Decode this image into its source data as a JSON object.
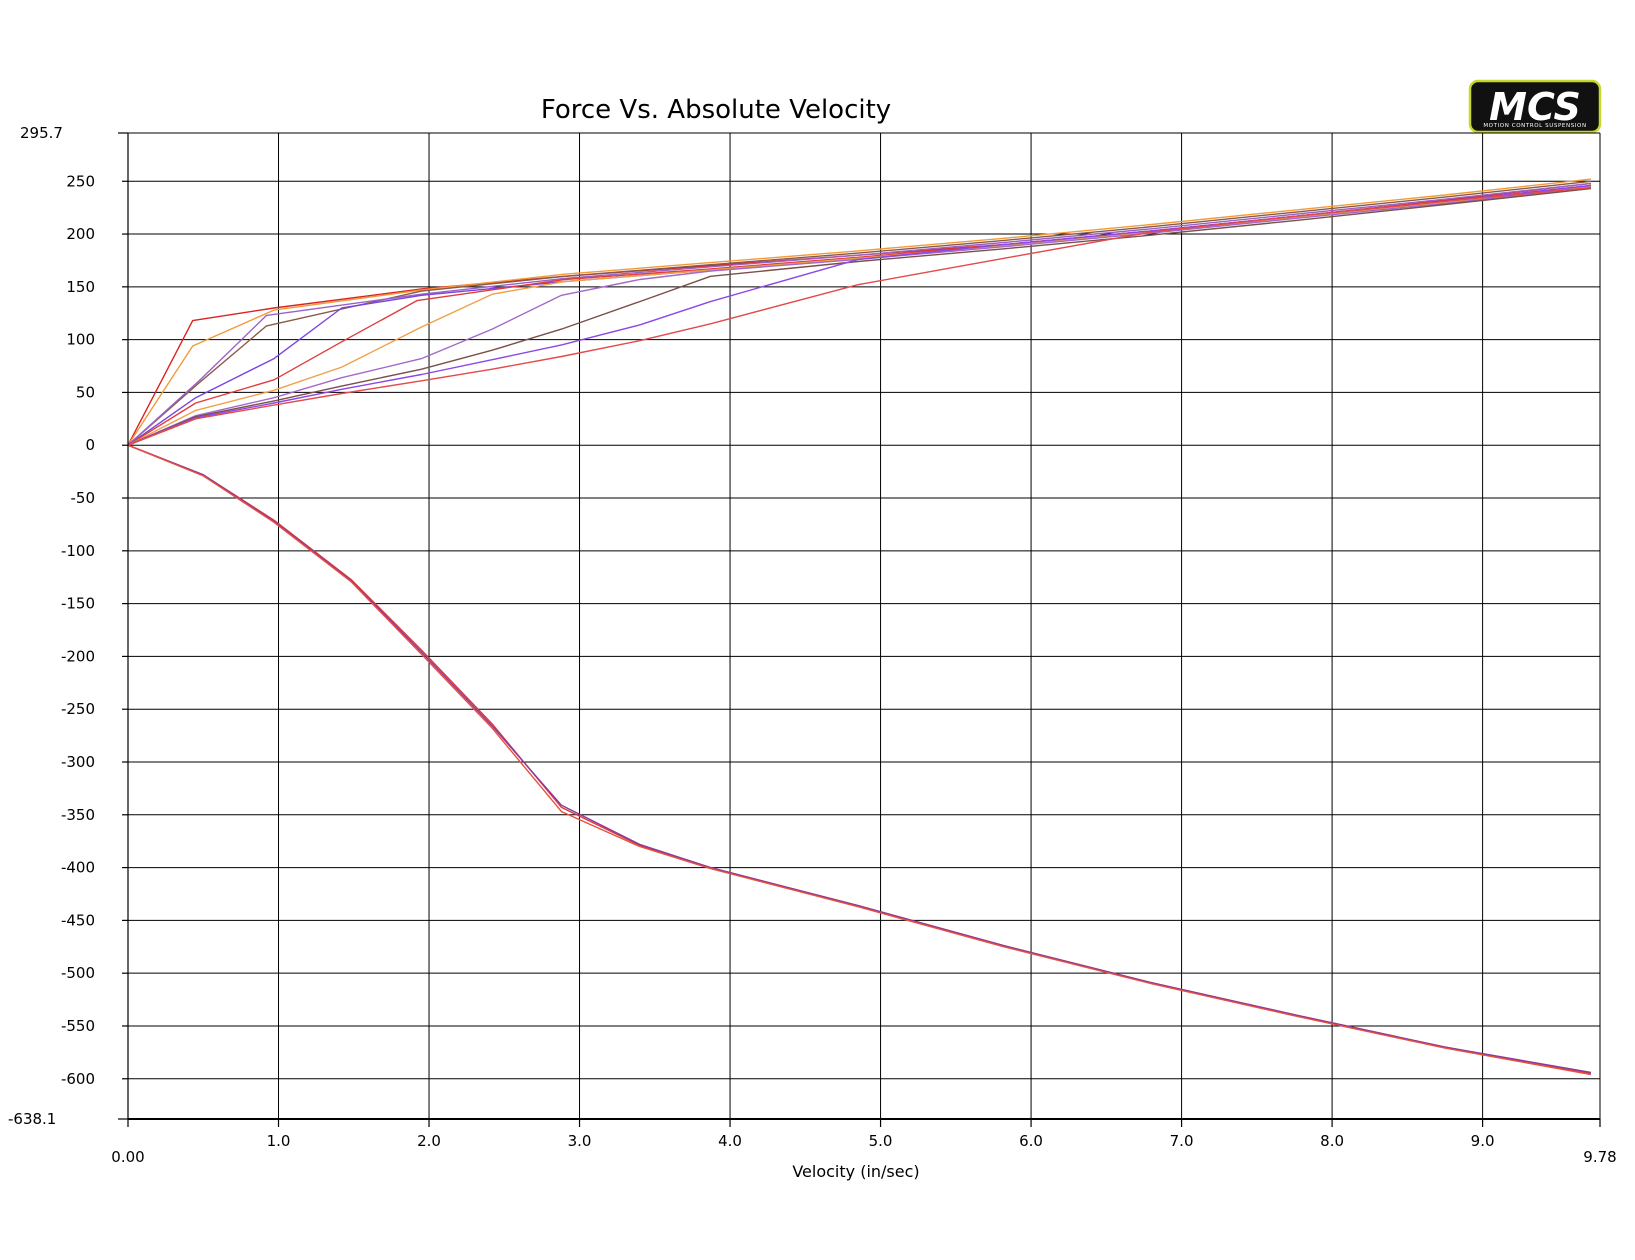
{
  "chart_data": {
    "type": "line",
    "title": "Force Vs. Absolute Velocity",
    "xlabel": "Velocity (in/sec)",
    "ylabel": "",
    "xlim": [
      0,
      9.78
    ],
    "ylim": [
      -638.1,
      295.7
    ],
    "x_ticks": [
      "0.00",
      "1.0",
      "2.0",
      "3.0",
      "4.0",
      "5.0",
      "6.0",
      "7.0",
      "8.0",
      "9.0",
      "9.78"
    ],
    "y_ticks": [
      "295.7",
      "250",
      "200",
      "150",
      "100",
      "50",
      "0",
      "-50",
      "-100",
      "-150",
      "-200",
      "-250",
      "-300",
      "-350",
      "-400",
      "-450",
      "-500",
      "-550",
      "-600",
      "-638.1"
    ],
    "grid": true,
    "legend": "none",
    "series": [
      {
        "color": "#dd2222",
        "x": [
          0,
          0.43,
          0.97,
          1.95,
          2.9,
          3.87,
          4.85,
          5.82,
          6.8,
          7.77,
          8.75,
          9.72
        ],
        "y": [
          0,
          118,
          130,
          148,
          160,
          170,
          180,
          190,
          203,
          217,
          232,
          248
        ]
      },
      {
        "color": "#f29a3a",
        "x": [
          0,
          0.43,
          0.97,
          1.95,
          2.9,
          3.87,
          4.85,
          5.82,
          6.8,
          7.77,
          8.75,
          9.72
        ],
        "y": [
          0,
          94,
          128,
          147,
          162,
          173,
          184,
          196,
          209,
          223,
          237,
          252
        ]
      },
      {
        "color": "#8a5a46",
        "x": [
          0,
          0.48,
          0.92,
          1.95,
          2.9,
          3.87,
          4.85,
          5.82,
          6.8,
          7.77,
          8.75,
          9.72
        ],
        "y": [
          0,
          60,
          113,
          146,
          160,
          171,
          182,
          194,
          207,
          221,
          235,
          250
        ]
      },
      {
        "color": "#9a62c8",
        "x": [
          0,
          0.48,
          0.92,
          1.95,
          2.9,
          3.87,
          4.85,
          5.82,
          6.8,
          7.77,
          8.75,
          9.72
        ],
        "y": [
          0,
          62,
          123,
          143,
          158,
          169,
          180,
          192,
          205,
          219,
          233,
          248
        ]
      },
      {
        "color": "#7a44e0",
        "x": [
          0,
          0.45,
          0.97,
          1.42,
          1.95,
          2.9,
          3.87,
          4.85,
          5.82,
          6.8,
          7.77,
          8.75,
          9.72
        ],
        "y": [
          0,
          45,
          82,
          130,
          142,
          155,
          166,
          177,
          189,
          202,
          216,
          230,
          245
        ]
      },
      {
        "color": "#e03c3c",
        "x": [
          0,
          0.45,
          0.97,
          1.42,
          1.92,
          2.9,
          3.87,
          4.85,
          5.82,
          6.8,
          7.77,
          8.75,
          9.72
        ],
        "y": [
          0,
          40,
          62,
          98,
          137,
          157,
          167,
          178,
          190,
          203,
          217,
          231,
          246
        ]
      },
      {
        "color": "#f0a048",
        "x": [
          0,
          0.45,
          0.97,
          1.42,
          1.95,
          2.42,
          2.9,
          3.87,
          4.85,
          5.82,
          6.8,
          7.77,
          8.75,
          9.72
        ],
        "y": [
          0,
          33,
          52,
          74,
          112,
          143,
          155,
          166,
          177,
          189,
          202,
          216,
          230,
          245
        ]
      },
      {
        "color": "#a468c8",
        "x": [
          0,
          0.45,
          0.97,
          1.42,
          1.95,
          2.42,
          2.88,
          3.4,
          3.87,
          4.85,
          5.82,
          6.8,
          7.77,
          8.75,
          9.72
        ],
        "y": [
          0,
          28,
          45,
          64,
          82,
          110,
          142,
          157,
          165,
          176,
          188,
          201,
          215,
          229,
          244
        ]
      },
      {
        "color": "#7a5048",
        "x": [
          0,
          0.45,
          0.97,
          1.42,
          1.95,
          2.42,
          2.88,
          3.4,
          3.87,
          4.85,
          5.82,
          6.8,
          7.77,
          8.75,
          9.72
        ],
        "y": [
          0,
          27,
          42,
          56,
          72,
          90,
          110,
          136,
          160,
          174,
          186,
          199,
          213,
          228,
          243
        ]
      },
      {
        "color": "#8a48e8",
        "x": [
          0,
          0.45,
          0.97,
          1.42,
          1.95,
          2.42,
          2.88,
          3.4,
          3.87,
          4.85,
          5.82,
          6.8,
          7.77,
          8.75,
          9.72
        ],
        "y": [
          0,
          26,
          40,
          53,
          67,
          81,
          95,
          114,
          136,
          176,
          190,
          203,
          217,
          231,
          246
        ]
      },
      {
        "color": "#e44a4a",
        "x": [
          0,
          0.45,
          0.97,
          1.42,
          1.95,
          2.42,
          2.88,
          3.4,
          3.87,
          4.85,
          5.82,
          6.8,
          7.77,
          8.75,
          9.72
        ],
        "y": [
          0,
          25,
          38,
          49,
          61,
          72,
          84,
          99,
          115,
          152,
          177,
          202,
          217,
          231,
          244
        ]
      },
      {
        "color": "#d93a3a",
        "x": [
          0,
          0.5,
          0.97,
          1.48,
          1.95,
          2.42,
          2.88,
          3.4,
          3.87,
          4.85,
          5.82,
          6.8,
          7.77,
          8.75,
          9.72
        ],
        "y": [
          0,
          -28,
          -71,
          -127,
          -194,
          -264,
          -343,
          -379,
          -400,
          -436,
          -474,
          -509,
          -540,
          -570,
          -595
        ]
      },
      {
        "color": "#8a3aa0",
        "x": [
          0,
          0.5,
          0.97,
          1.48,
          1.95,
          2.42,
          2.88,
          3.4,
          3.87,
          4.85,
          5.82,
          6.8,
          7.77,
          8.75,
          9.72
        ],
        "y": [
          0,
          -28,
          -72,
          -128,
          -196,
          -266,
          -341,
          -378,
          -400,
          -436,
          -474,
          -509,
          -540,
          -570,
          -594
        ]
      },
      {
        "color": "#e84f3c",
        "x": [
          0,
          0.5,
          0.97,
          1.48,
          1.95,
          2.42,
          2.88,
          3.4,
          3.87,
          4.85,
          5.82,
          6.8,
          7.77,
          8.75,
          9.72
        ],
        "y": [
          0,
          -29,
          -73,
          -129,
          -198,
          -268,
          -347,
          -380,
          -401,
          -437,
          -475,
          -510,
          -541,
          -571,
          -596
        ]
      }
    ]
  },
  "logo": {
    "text": "MCS",
    "subtitle": "MOTION CONTROL SUSPENSION",
    "bg_color": "#111111",
    "border_color": "#c6d82a"
  }
}
